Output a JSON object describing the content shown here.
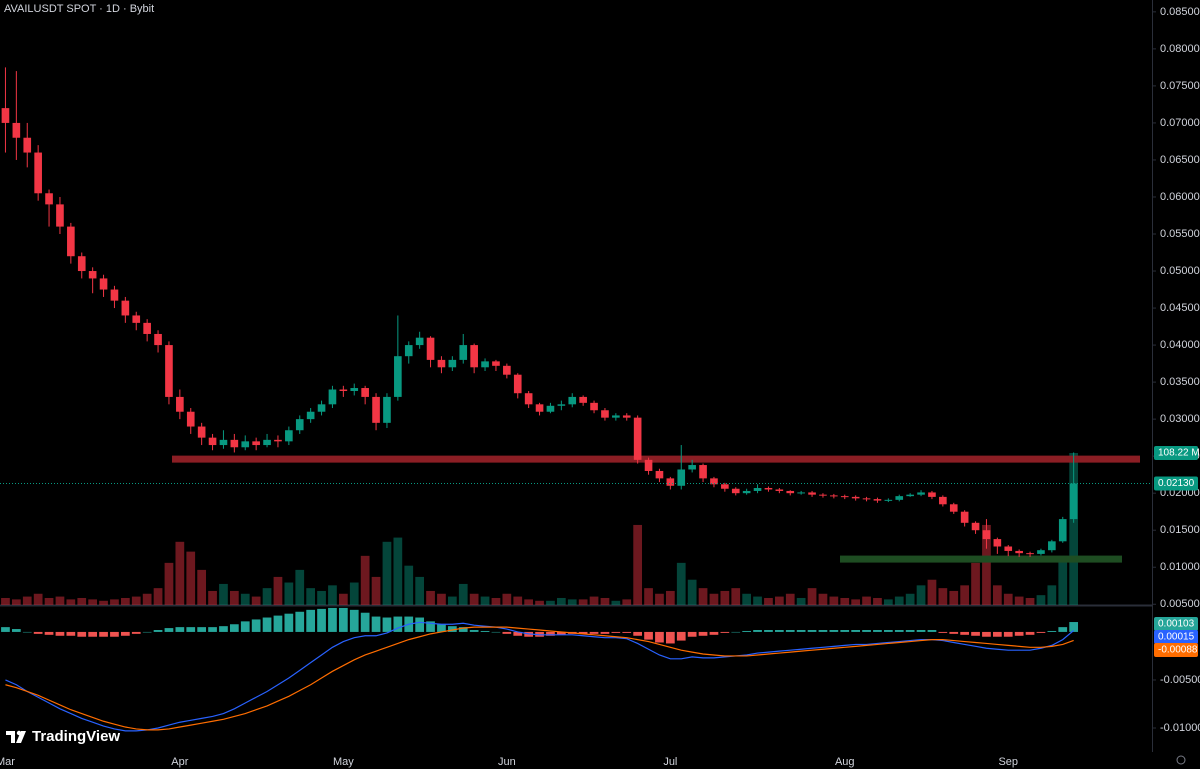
{
  "chart_data": {
    "type": "candlestick",
    "title": "AVAILUSDT SPOT · 1D · Bybit",
    "watermark": "TradingView",
    "up_color": "#089981",
    "down_color": "#f23645",
    "categories": [
      "Mar",
      null,
      null,
      null,
      null,
      null,
      null,
      null,
      null,
      null,
      null,
      null,
      null,
      null,
      null,
      null,
      "Apr",
      null,
      null,
      null,
      null,
      null,
      null,
      null,
      null,
      null,
      null,
      null,
      null,
      null,
      null,
      "May",
      null,
      null,
      null,
      null,
      null,
      null,
      null,
      null,
      null,
      null,
      null,
      null,
      null,
      null,
      "Jun",
      null,
      null,
      null,
      null,
      null,
      null,
      null,
      null,
      null,
      null,
      null,
      null,
      null,
      null,
      "Jul",
      null,
      null,
      null,
      null,
      null,
      null,
      null,
      null,
      null,
      null,
      null,
      null,
      null,
      null,
      null,
      "Aug",
      null,
      null,
      null,
      null,
      null,
      null,
      null,
      null,
      null,
      null,
      null,
      null,
      null,
      null,
      "Sep",
      null,
      null,
      null,
      null,
      null,
      null
    ],
    "open": [
      0.072,
      0.07,
      0.068,
      0.066,
      0.0605,
      0.059,
      0.056,
      0.052,
      0.05,
      0.049,
      0.0475,
      0.046,
      0.044,
      0.043,
      0.0415,
      0.04,
      0.033,
      0.031,
      0.029,
      0.0275,
      0.0265,
      0.0272,
      0.0262,
      0.027,
      0.0265,
      0.0272,
      0.027,
      0.0285,
      0.03,
      0.031,
      0.032,
      0.034,
      0.0338,
      0.0342,
      0.033,
      0.0295,
      0.033,
      0.0385,
      0.04,
      0.041,
      0.038,
      0.037,
      0.038,
      0.04,
      0.037,
      0.0378,
      0.0372,
      0.036,
      0.0335,
      0.032,
      0.031,
      0.0318,
      0.032,
      0.033,
      0.0322,
      0.0312,
      0.0302,
      0.0305,
      0.0302,
      0.0245,
      0.023,
      0.022,
      0.021,
      0.0232,
      0.0238,
      0.022,
      0.0212,
      0.0206,
      0.02,
      0.0203,
      0.0207,
      0.0205,
      0.0203,
      0.02,
      0.0201,
      0.0198,
      0.0197,
      0.0196,
      0.0195,
      0.0193,
      0.0192,
      0.019,
      0.0191,
      0.0196,
      0.0198,
      0.0201,
      0.0195,
      0.0185,
      0.0175,
      0.016,
      0.015,
      0.0138,
      0.0128,
      0.0122,
      0.0119,
      0.0118,
      0.0123,
      0.0135,
      0.0165
    ],
    "high": [
      0.0775,
      0.077,
      0.07,
      0.067,
      0.061,
      0.06,
      0.0565,
      0.0525,
      0.0505,
      0.0495,
      0.048,
      0.0465,
      0.0445,
      0.0435,
      0.042,
      0.0405,
      0.034,
      0.0315,
      0.0295,
      0.028,
      0.0285,
      0.028,
      0.0278,
      0.0275,
      0.028,
      0.0278,
      0.029,
      0.0305,
      0.0315,
      0.0325,
      0.0345,
      0.0345,
      0.0348,
      0.0345,
      0.0335,
      0.0335,
      0.044,
      0.0405,
      0.0418,
      0.0412,
      0.0385,
      0.0385,
      0.0415,
      0.0402,
      0.0382,
      0.038,
      0.0375,
      0.0362,
      0.0338,
      0.0322,
      0.0322,
      0.0325,
      0.0335,
      0.0332,
      0.0325,
      0.0315,
      0.0308,
      0.0308,
      0.0305,
      0.0248,
      0.0233,
      0.0222,
      0.0265,
      0.0245,
      0.024,
      0.0222,
      0.0214,
      0.0208,
      0.0206,
      0.0212,
      0.0209,
      0.0207,
      0.0204,
      0.0203,
      0.0203,
      0.02,
      0.0199,
      0.0198,
      0.0197,
      0.0195,
      0.0194,
      0.0193,
      0.0198,
      0.02,
      0.0204,
      0.0203,
      0.0197,
      0.0187,
      0.0177,
      0.0162,
      0.0165,
      0.014,
      0.013,
      0.0124,
      0.0121,
      0.0125,
      0.0137,
      0.0168,
      0.0255
    ],
    "low": [
      0.066,
      0.065,
      0.064,
      0.0595,
      0.056,
      0.055,
      0.051,
      0.049,
      0.047,
      0.0465,
      0.045,
      0.043,
      0.042,
      0.0405,
      0.039,
      0.032,
      0.03,
      0.028,
      0.0265,
      0.0258,
      0.026,
      0.0255,
      0.0258,
      0.0258,
      0.0262,
      0.0262,
      0.0265,
      0.028,
      0.0295,
      0.0305,
      0.0315,
      0.033,
      0.0332,
      0.032,
      0.0285,
      0.0288,
      0.0325,
      0.0375,
      0.0395,
      0.037,
      0.0362,
      0.0365,
      0.0375,
      0.0362,
      0.0365,
      0.0365,
      0.0355,
      0.0328,
      0.0315,
      0.0305,
      0.0308,
      0.0312,
      0.0316,
      0.0318,
      0.0308,
      0.0298,
      0.0298,
      0.0298,
      0.024,
      0.0225,
      0.0215,
      0.0205,
      0.0205,
      0.0228,
      0.0215,
      0.0208,
      0.0202,
      0.0197,
      0.0198,
      0.02,
      0.0202,
      0.02,
      0.0197,
      0.0198,
      0.0195,
      0.0194,
      0.0193,
      0.0192,
      0.019,
      0.0189,
      0.0187,
      0.0188,
      0.0189,
      0.0195,
      0.0196,
      0.0192,
      0.0182,
      0.0172,
      0.0155,
      0.0145,
      0.0125,
      0.0118,
      0.0115,
      0.0114,
      0.0114,
      0.0116,
      0.012,
      0.0133,
      0.016
    ],
    "close": [
      0.07,
      0.068,
      0.066,
      0.0605,
      0.059,
      0.056,
      0.052,
      0.05,
      0.049,
      0.0475,
      0.046,
      0.044,
      0.043,
      0.0415,
      0.04,
      0.033,
      0.031,
      0.029,
      0.0275,
      0.0265,
      0.0272,
      0.0262,
      0.027,
      0.0265,
      0.0272,
      0.027,
      0.0285,
      0.03,
      0.031,
      0.032,
      0.034,
      0.0338,
      0.0342,
      0.033,
      0.0295,
      0.033,
      0.0385,
      0.04,
      0.041,
      0.038,
      0.037,
      0.038,
      0.04,
      0.037,
      0.0378,
      0.0372,
      0.036,
      0.0335,
      0.032,
      0.031,
      0.0318,
      0.032,
      0.033,
      0.0322,
      0.0312,
      0.0302,
      0.0305,
      0.0302,
      0.0245,
      0.023,
      0.022,
      0.021,
      0.0232,
      0.0238,
      0.022,
      0.0212,
      0.0206,
      0.02,
      0.0203,
      0.0207,
      0.0205,
      0.0203,
      0.02,
      0.0201,
      0.0198,
      0.0197,
      0.0196,
      0.0195,
      0.0193,
      0.0192,
      0.019,
      0.0191,
      0.0196,
      0.0198,
      0.0201,
      0.0195,
      0.0185,
      0.0175,
      0.016,
      0.015,
      0.0138,
      0.0128,
      0.0122,
      0.0119,
      0.0118,
      0.0123,
      0.0135,
      0.0165,
      0.0213
    ],
    "close_label": "0.02130",
    "ylim": [
      0.0049,
      0.0866
    ],
    "yticks": [
      {
        "value": 0.085,
        "label": "0.08500"
      },
      {
        "value": 0.08,
        "label": "0.08000"
      },
      {
        "value": 0.075,
        "label": "0.07500"
      },
      {
        "value": 0.07,
        "label": "0.07000"
      },
      {
        "value": 0.065,
        "label": "0.06500"
      },
      {
        "value": 0.06,
        "label": "0.06000"
      },
      {
        "value": 0.055,
        "label": "0.05500"
      },
      {
        "value": 0.05,
        "label": "0.05000"
      },
      {
        "value": 0.045,
        "label": "0.04500"
      },
      {
        "value": 0.04,
        "label": "0.04000"
      },
      {
        "value": 0.035,
        "label": "0.03500"
      },
      {
        "value": 0.03,
        "label": "0.03000"
      },
      {
        "value": 0.025,
        "label": "0.02500"
      },
      {
        "value": 0.02,
        "label": "0.02000"
      },
      {
        "value": 0.015,
        "label": "0.01500"
      },
      {
        "value": 0.01,
        "label": "0.01000"
      },
      {
        "value": 0.005,
        "label": "0.00500"
      }
    ],
    "levels": [
      {
        "value": 0.0246,
        "color": "#8b1e24"
      },
      {
        "value": 0.0111,
        "color": "#1e4d22"
      }
    ],
    "volume": {
      "lim": [
        0,
        108.22
      ],
      "label": "108.22 M",
      "values": [
        5,
        4,
        6,
        8,
        5,
        6,
        4,
        5,
        4,
        3,
        4,
        5,
        6,
        8,
        12,
        30,
        45,
        38,
        25,
        10,
        15,
        10,
        8,
        6,
        12,
        20,
        16,
        25,
        12,
        10,
        14,
        8,
        16,
        35,
        20,
        45,
        48,
        28,
        20,
        10,
        8,
        6,
        15,
        8,
        6,
        5,
        8,
        6,
        4,
        3,
        3,
        5,
        4,
        4,
        6,
        5,
        3,
        4,
        57,
        12,
        8,
        10,
        30,
        18,
        12,
        8,
        10,
        12,
        8,
        6,
        5,
        6,
        8,
        5,
        12,
        8,
        6,
        5,
        4,
        6,
        5,
        4,
        6,
        8,
        14,
        18,
        12,
        10,
        14,
        30,
        57,
        14,
        8,
        6,
        5,
        7,
        14,
        35,
        108.22
      ]
    },
    "macd": {
      "ylim": [
        -0.0125,
        0.0027
      ],
      "yticks": [
        {
          "value": -0.005,
          "label": "-0.00500"
        },
        {
          "value": -0.01,
          "label": "-0.01000"
        }
      ],
      "histogram": {
        "color_up": "#26a69a",
        "color_down": "#ef5350",
        "label": "0.00103",
        "values": [
          0.0005,
          0.0003,
          0,
          -0.0002,
          -0.0003,
          -0.0004,
          -0.0004,
          -0.0005,
          -0.0005,
          -0.0005,
          -0.0005,
          -0.0004,
          -0.0002,
          0,
          0.0002,
          0.0004,
          0.0005,
          0.0005,
          0.0005,
          0.0005,
          0.0006,
          0.0008,
          0.0011,
          0.0013,
          0.0015,
          0.0017,
          0.0019,
          0.0021,
          0.0023,
          0.0024,
          0.0025,
          0.0025,
          0.0023,
          0.002,
          0.0016,
          0.0015,
          0.0016,
          0.0016,
          0.0015,
          0.0011,
          0.0008,
          0.0006,
          0.0005,
          0.0002,
          0.0001,
          0,
          -0.0002,
          -0.0004,
          -0.0005,
          -0.0005,
          -0.0004,
          -0.0003,
          -0.0002,
          -0.0002,
          -0.0002,
          -0.0002,
          -0.0001,
          -0.0001,
          -0.0004,
          -0.0008,
          -0.0011,
          -0.0012,
          -0.0009,
          -0.0005,
          -0.0004,
          -0.0003,
          -0.0001,
          0,
          0.0001,
          0.0002,
          0.0002,
          0.0002,
          0.0002,
          0.0002,
          0.0002,
          0.0002,
          0.0002,
          0.0002,
          0.0002,
          0.0002,
          0.0002,
          0.0002,
          0.0002,
          0.0002,
          0.0002,
          0.0002,
          -0.0001,
          -0.0002,
          -0.0003,
          -0.0004,
          -0.0005,
          -0.0005,
          -0.0005,
          -0.0004,
          -0.0003,
          -0.0001,
          0.0001,
          0.0005,
          0.00103
        ]
      },
      "macd_line": {
        "color": "#2962ff",
        "label": "0.00015",
        "values": [
          -0.005,
          -0.0055,
          -0.0062,
          -0.0068,
          -0.0074,
          -0.008,
          -0.0085,
          -0.009,
          -0.0094,
          -0.0098,
          -0.0101,
          -0.0103,
          -0.0103,
          -0.0102,
          -0.01,
          -0.0097,
          -0.0094,
          -0.0092,
          -0.009,
          -0.0088,
          -0.0085,
          -0.008,
          -0.0074,
          -0.0068,
          -0.0062,
          -0.0055,
          -0.0048,
          -0.004,
          -0.0032,
          -0.0024,
          -0.0016,
          -0.001,
          -0.0006,
          -0.0004,
          -0.0004,
          -0.0001,
          0.0004,
          0.0008,
          0.001,
          0.0009,
          0.0008,
          0.0008,
          0.0009,
          0.0007,
          0.0006,
          0.0005,
          0.0003,
          0,
          -0.0002,
          -0.0003,
          -0.0003,
          -0.0003,
          -0.0003,
          -0.0004,
          -0.0005,
          -0.0006,
          -0.0006,
          -0.0007,
          -0.0012,
          -0.0018,
          -0.0024,
          -0.0028,
          -0.0028,
          -0.0026,
          -0.0027,
          -0.0027,
          -0.0026,
          -0.0025,
          -0.0024,
          -0.0022,
          -0.0021,
          -0.002,
          -0.0019,
          -0.0018,
          -0.0017,
          -0.0016,
          -0.0015,
          -0.0014,
          -0.0013,
          -0.0013,
          -0.0012,
          -0.0011,
          -0.001,
          -0.0009,
          -0.0008,
          -0.0008,
          -0.0009,
          -0.0011,
          -0.0013,
          -0.0015,
          -0.0017,
          -0.0018,
          -0.0019,
          -0.0019,
          -0.0019,
          -0.0017,
          -0.0014,
          -0.0008,
          0.00015
        ]
      },
      "signal_line": {
        "color": "#ff6d00",
        "label": "-0.00088",
        "values": [
          -0.0055,
          -0.0058,
          -0.0062,
          -0.0066,
          -0.0071,
          -0.0076,
          -0.0081,
          -0.0085,
          -0.0089,
          -0.0093,
          -0.0096,
          -0.0099,
          -0.0101,
          -0.0102,
          -0.0102,
          -0.0101,
          -0.0099,
          -0.0097,
          -0.0095,
          -0.0093,
          -0.0091,
          -0.0088,
          -0.0085,
          -0.0081,
          -0.0077,
          -0.0072,
          -0.0067,
          -0.0061,
          -0.0055,
          -0.0048,
          -0.0041,
          -0.0035,
          -0.0029,
          -0.0024,
          -0.002,
          -0.0016,
          -0.0012,
          -0.0008,
          -0.0005,
          -0.0002,
          0,
          0.0002,
          0.0004,
          0.0005,
          0.0005,
          0.0005,
          0.0005,
          0.0004,
          0.0003,
          0.0002,
          0.0001,
          0,
          -0.0001,
          -0.0002,
          -0.0003,
          -0.0004,
          -0.0005,
          -0.0006,
          -0.0008,
          -0.001,
          -0.0013,
          -0.0016,
          -0.0019,
          -0.0021,
          -0.0023,
          -0.0024,
          -0.0025,
          -0.0025,
          -0.0025,
          -0.0024,
          -0.0023,
          -0.0022,
          -0.0021,
          -0.002,
          -0.0019,
          -0.0018,
          -0.0017,
          -0.0016,
          -0.0015,
          -0.0014,
          -0.0013,
          -0.0012,
          -0.0011,
          -0.001,
          -0.0009,
          -0.0008,
          -0.0008,
          -0.0009,
          -0.001,
          -0.0011,
          -0.0012,
          -0.0013,
          -0.0014,
          -0.0015,
          -0.0016,
          -0.0016,
          -0.0015,
          -0.0013,
          -0.00088
        ]
      }
    }
  }
}
